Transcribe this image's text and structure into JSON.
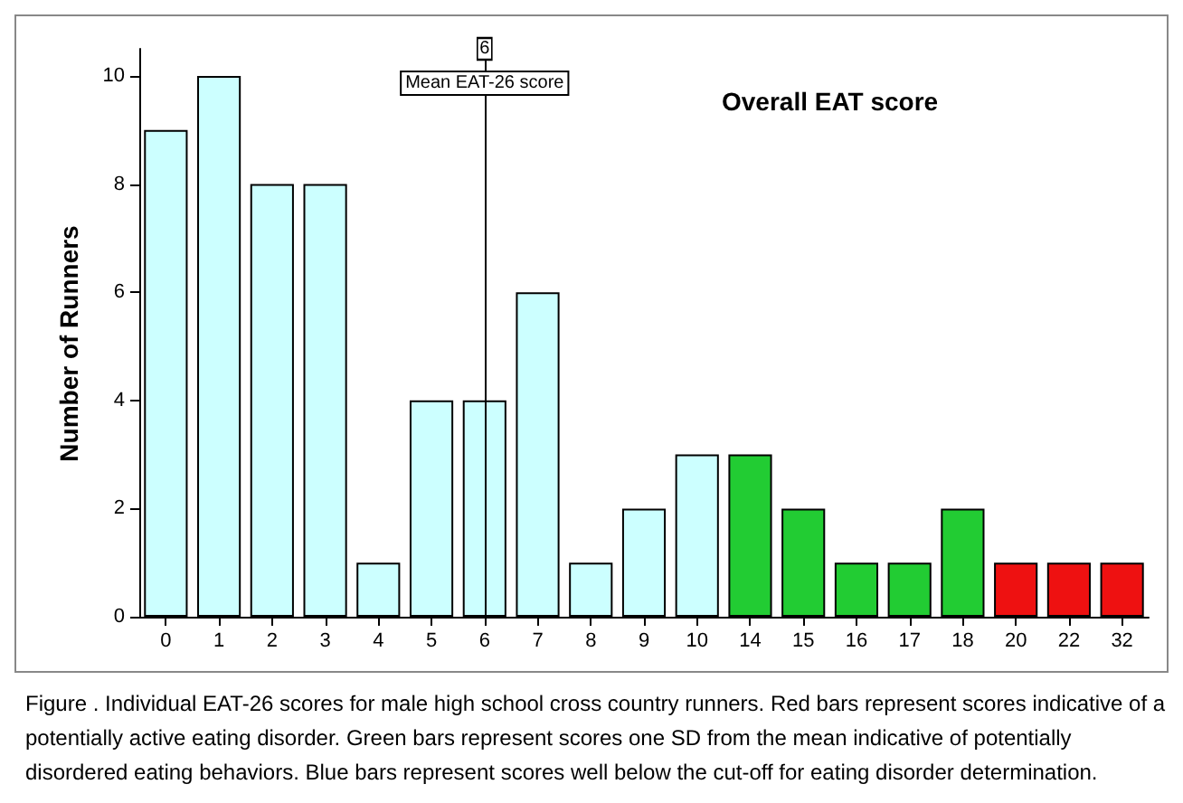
{
  "chart_data": {
    "type": "bar",
    "xlabel": "Overall EAT score",
    "ylabel": "Number of Runners",
    "categories": [
      "0",
      "1",
      "2",
      "3",
      "4",
      "5",
      "6",
      "7",
      "8",
      "9",
      "10",
      "14",
      "15",
      "16",
      "17",
      "18",
      "20",
      "22",
      "32"
    ],
    "values": [
      9,
      10,
      8,
      8,
      1,
      4,
      4,
      6,
      1,
      2,
      3,
      3,
      2,
      1,
      1,
      2,
      1,
      1,
      1
    ],
    "colors": [
      "#ccffff",
      "#ccffff",
      "#ccffff",
      "#ccffff",
      "#ccffff",
      "#ccffff",
      "#ccffff",
      "#ccffff",
      "#ccffff",
      "#ccffff",
      "#ccffff",
      "#22cc33",
      "#22cc33",
      "#22cc33",
      "#22cc33",
      "#22cc33",
      "#ee1111",
      "#ee1111",
      "#ee1111"
    ],
    "ylim": [
      0,
      10.5
    ],
    "yticks": [
      0,
      2,
      4,
      6,
      8,
      10
    ],
    "grid": false,
    "ref_lines": [
      {
        "axis": "x",
        "value": "6",
        "label": "Mean EAT-26 score",
        "color": "#000000"
      }
    ],
    "annotations": [
      {
        "text": "6",
        "x": "6",
        "y": 10.5
      },
      "Figure . Individual EAT-26 scores for male high school cross country runners. Red bars represent scores indicative of a potentially active eating disorder. Green bars represent scores one SD from the mean indicative of potentially disordered eating behaviors. Blue bars represent scores well below the cut-off for eating disorder determination."
    ]
  }
}
